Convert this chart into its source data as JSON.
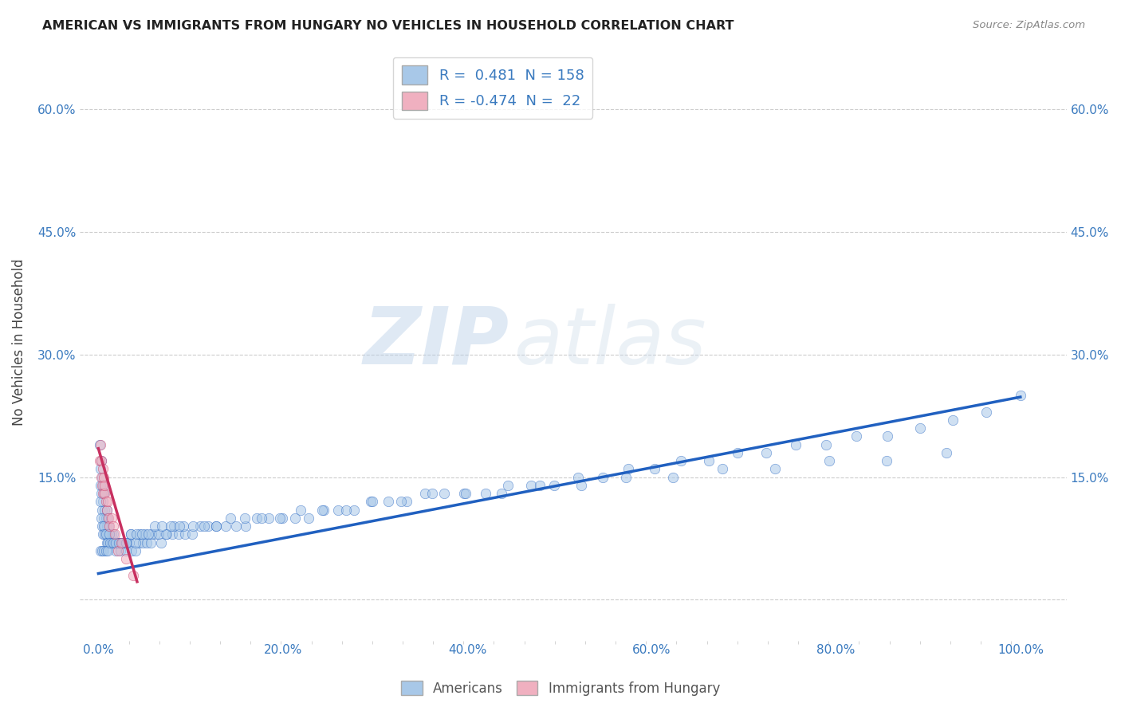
{
  "title": "AMERICAN VS IMMIGRANTS FROM HUNGARY NO VEHICLES IN HOUSEHOLD CORRELATION CHART",
  "source": "Source: ZipAtlas.com",
  "xlabel_ticks": [
    "0.0%",
    "",
    "",
    "",
    "",
    "",
    "20.0%",
    "",
    "",
    "",
    "",
    "",
    "40.0%",
    "",
    "",
    "",
    "",
    "",
    "60.0%",
    "",
    "",
    "",
    "",
    "",
    "80.0%",
    "",
    "",
    "",
    "",
    "",
    "100.0%"
  ],
  "ylabel_ticks": [
    "",
    "15.0%",
    "30.0%",
    "45.0%",
    "60.0%"
  ],
  "ylabel_vals": [
    0.0,
    0.15,
    0.3,
    0.45,
    0.6
  ],
  "ylabel_label": "No Vehicles in Household",
  "xlim": [
    -0.02,
    1.05
  ],
  "ylim": [
    -0.05,
    0.68
  ],
  "R_american": 0.481,
  "N_american": 158,
  "R_hungary": -0.474,
  "N_hungary": 22,
  "american_color": "#a8c8e8",
  "american_color_line": "#2060c0",
  "hungary_color": "#f0b0c0",
  "hungary_color_line": "#c83060",
  "watermark_zip": "ZIP",
  "watermark_atlas": "atlas",
  "scatter_alpha": 0.55,
  "scatter_size": 80,
  "americans_x": [
    0.001,
    0.002,
    0.002,
    0.003,
    0.003,
    0.004,
    0.004,
    0.005,
    0.005,
    0.006,
    0.006,
    0.007,
    0.007,
    0.008,
    0.008,
    0.009,
    0.009,
    0.01,
    0.01,
    0.011,
    0.011,
    0.012,
    0.013,
    0.014,
    0.015,
    0.016,
    0.017,
    0.018,
    0.019,
    0.02,
    0.022,
    0.024,
    0.026,
    0.028,
    0.03,
    0.033,
    0.036,
    0.04,
    0.044,
    0.048,
    0.052,
    0.057,
    0.062,
    0.068,
    0.074,
    0.08,
    0.087,
    0.094,
    0.102,
    0.11,
    0.119,
    0.128,
    0.138,
    0.149,
    0.16,
    0.172,
    0.185,
    0.199,
    0.213,
    0.228,
    0.244,
    0.26,
    0.277,
    0.295,
    0.314,
    0.334,
    0.354,
    0.375,
    0.397,
    0.42,
    0.444,
    0.469,
    0.494,
    0.52,
    0.547,
    0.575,
    0.603,
    0.632,
    0.662,
    0.693,
    0.724,
    0.756,
    0.789,
    0.822,
    0.856,
    0.891,
    0.927,
    0.963,
    1.0,
    0.002,
    0.003,
    0.004,
    0.005,
    0.006,
    0.007,
    0.008,
    0.009,
    0.01,
    0.012,
    0.014,
    0.016,
    0.018,
    0.021,
    0.024,
    0.027,
    0.031,
    0.035,
    0.04,
    0.045,
    0.051,
    0.058,
    0.065,
    0.073,
    0.082,
    0.092,
    0.103,
    0.115,
    0.128,
    0.143,
    0.159,
    0.177,
    0.197,
    0.219,
    0.243,
    0.269,
    0.297,
    0.328,
    0.362,
    0.398,
    0.437,
    0.479,
    0.524,
    0.572,
    0.623,
    0.677,
    0.734,
    0.793,
    0.855,
    0.92,
    0.002,
    0.004,
    0.006,
    0.008,
    0.01,
    0.013,
    0.016,
    0.019,
    0.022,
    0.026,
    0.03,
    0.035,
    0.041,
    0.047,
    0.054,
    0.061,
    0.069,
    0.078,
    0.088
  ],
  "americans_y": [
    0.19,
    0.16,
    0.14,
    0.17,
    0.13,
    0.15,
    0.11,
    0.14,
    0.12,
    0.13,
    0.1,
    0.11,
    0.09,
    0.1,
    0.08,
    0.09,
    0.11,
    0.08,
    0.1,
    0.09,
    0.07,
    0.08,
    0.07,
    0.08,
    0.07,
    0.08,
    0.07,
    0.07,
    0.06,
    0.07,
    0.07,
    0.06,
    0.07,
    0.07,
    0.06,
    0.07,
    0.06,
    0.06,
    0.07,
    0.07,
    0.07,
    0.07,
    0.08,
    0.07,
    0.08,
    0.08,
    0.08,
    0.08,
    0.08,
    0.09,
    0.09,
    0.09,
    0.09,
    0.09,
    0.09,
    0.1,
    0.1,
    0.1,
    0.1,
    0.1,
    0.11,
    0.11,
    0.11,
    0.12,
    0.12,
    0.12,
    0.13,
    0.13,
    0.13,
    0.13,
    0.14,
    0.14,
    0.14,
    0.15,
    0.15,
    0.16,
    0.16,
    0.17,
    0.17,
    0.18,
    0.18,
    0.19,
    0.19,
    0.2,
    0.2,
    0.21,
    0.22,
    0.23,
    0.25,
    0.12,
    0.1,
    0.09,
    0.08,
    0.09,
    0.08,
    0.08,
    0.07,
    0.07,
    0.08,
    0.07,
    0.07,
    0.07,
    0.07,
    0.07,
    0.07,
    0.07,
    0.08,
    0.07,
    0.08,
    0.08,
    0.08,
    0.08,
    0.08,
    0.09,
    0.09,
    0.09,
    0.09,
    0.09,
    0.1,
    0.1,
    0.1,
    0.1,
    0.11,
    0.11,
    0.11,
    0.12,
    0.12,
    0.13,
    0.13,
    0.13,
    0.14,
    0.14,
    0.15,
    0.15,
    0.16,
    0.16,
    0.17,
    0.17,
    0.18,
    0.06,
    0.06,
    0.06,
    0.06,
    0.06,
    0.07,
    0.07,
    0.07,
    0.07,
    0.07,
    0.07,
    0.08,
    0.08,
    0.08,
    0.08,
    0.09,
    0.09,
    0.09,
    0.09
  ],
  "hungary_x": [
    0.001,
    0.002,
    0.003,
    0.003,
    0.004,
    0.005,
    0.005,
    0.006,
    0.007,
    0.007,
    0.008,
    0.009,
    0.01,
    0.011,
    0.012,
    0.014,
    0.016,
    0.018,
    0.021,
    0.025,
    0.03,
    0.038
  ],
  "hungary_y": [
    0.17,
    0.19,
    0.15,
    0.17,
    0.14,
    0.16,
    0.13,
    0.15,
    0.13,
    0.14,
    0.12,
    0.11,
    0.12,
    0.1,
    0.09,
    0.1,
    0.09,
    0.08,
    0.06,
    0.07,
    0.05,
    0.03
  ],
  "american_line_x": [
    0.0,
    1.0
  ],
  "american_line_y": [
    0.032,
    0.248
  ],
  "hungary_line_x": [
    0.0,
    0.042
  ],
  "hungary_line_y": [
    0.185,
    0.022
  ]
}
